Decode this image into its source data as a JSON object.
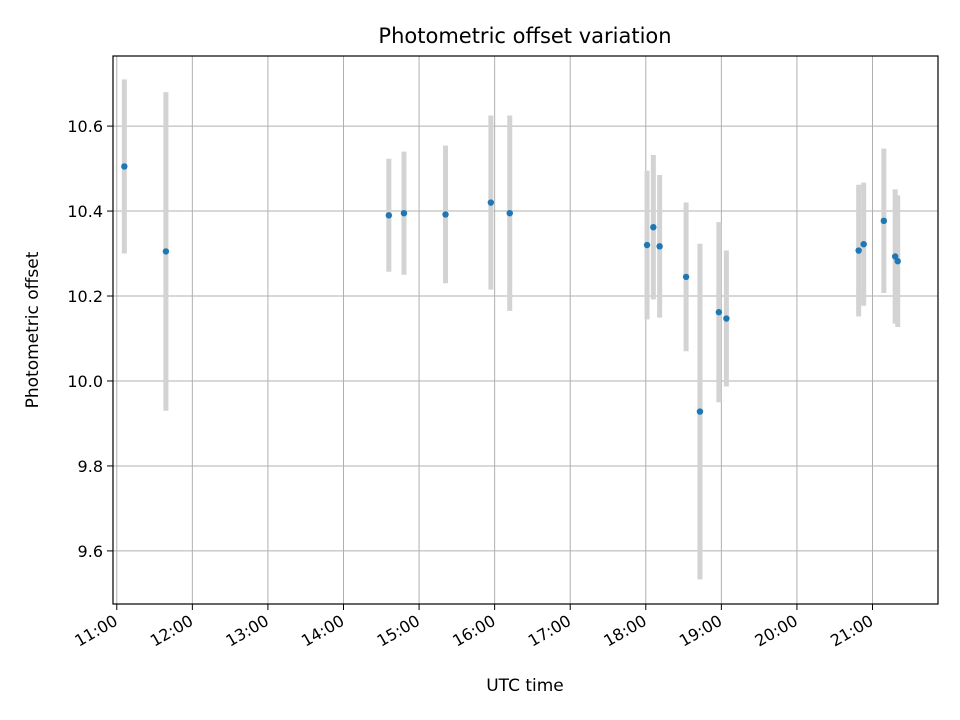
{
  "chart_data": {
    "type": "scatter",
    "title": "Photometric offset variation",
    "xlabel": "UTC time",
    "ylabel": "Photometric offset",
    "x_ticks": [
      "11:00",
      "12:00",
      "13:00",
      "14:00",
      "15:00",
      "16:00",
      "17:00",
      "18:00",
      "19:00",
      "20:00",
      "21:00"
    ],
    "y_ticks": [
      "9.6",
      "9.8",
      "10.0",
      "10.2",
      "10.4",
      "10.6"
    ],
    "xlim": [
      "10:57",
      "21:52"
    ],
    "ylim": [
      9.475,
      10.765
    ],
    "grid": true,
    "colors": {
      "point": "#1f77b4",
      "errorbar": "#d3d3d3",
      "grid": "#b0b0b0"
    },
    "points": [
      {
        "time": "11:06",
        "y": 10.505,
        "err": 0.205
      },
      {
        "time": "11:39",
        "y": 10.305,
        "err": 0.375
      },
      {
        "time": "14:36",
        "y": 10.39,
        "err": 0.133
      },
      {
        "time": "14:48",
        "y": 10.395,
        "err": 0.145
      },
      {
        "time": "15:21",
        "y": 10.392,
        "err": 0.162
      },
      {
        "time": "15:57",
        "y": 10.42,
        "err": 0.205
      },
      {
        "time": "16:12",
        "y": 10.395,
        "err": 0.23
      },
      {
        "time": "18:01",
        "y": 10.32,
        "err": 0.175
      },
      {
        "time": "18:06",
        "y": 10.362,
        "err": 0.17
      },
      {
        "time": "18:11",
        "y": 10.317,
        "err": 0.168
      },
      {
        "time": "18:32",
        "y": 10.245,
        "err": 0.175
      },
      {
        "time": "18:43",
        "y": 9.928,
        "err": 0.395
      },
      {
        "time": "18:58",
        "y": 10.162,
        "err": 0.212
      },
      {
        "time": "19:04",
        "y": 10.147,
        "err": 0.16
      },
      {
        "time": "20:49",
        "y": 10.307,
        "err": 0.155
      },
      {
        "time": "20:53",
        "y": 10.322,
        "err": 0.145
      },
      {
        "time": "21:09",
        "y": 10.377,
        "err": 0.17
      },
      {
        "time": "21:18",
        "y": 10.293,
        "err": 0.158
      },
      {
        "time": "21:20",
        "y": 10.282,
        "err": 0.155
      }
    ]
  }
}
